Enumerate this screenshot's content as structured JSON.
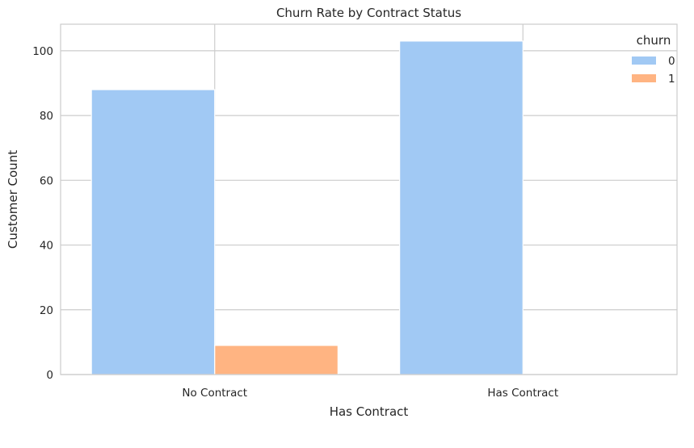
{
  "chart_data": {
    "type": "bar",
    "title": "Churn Rate by Contract Status",
    "xlabel": "Has Contract",
    "ylabel": "Customer Count",
    "categories": [
      "No Contract",
      "Has Contract"
    ],
    "series": [
      {
        "name": "0",
        "values": [
          88,
          103
        ],
        "color": "#a1c9f4"
      },
      {
        "name": "1",
        "values": [
          9,
          0
        ],
        "color": "#ffb482"
      }
    ],
    "ylim": [
      0,
      108.2
    ],
    "yticks": [
      0,
      20,
      40,
      60,
      80,
      100
    ],
    "legend": {
      "title": "churn",
      "position": "top-right"
    },
    "grid": true,
    "style": {
      "grid_color": "#cccccc",
      "text_color": "#262626"
    }
  }
}
